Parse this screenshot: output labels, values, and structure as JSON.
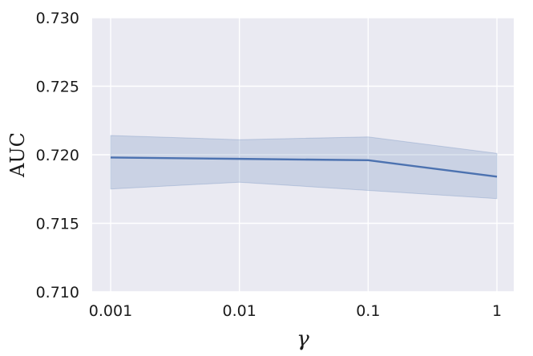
{
  "chart_data": {
    "type": "line",
    "xlabel": "γ",
    "ylabel": "AUC",
    "x": [
      0.001,
      0.01,
      0.1,
      1
    ],
    "x_tick_labels": [
      "0.001",
      "0.01",
      "0.1",
      "1"
    ],
    "x_scale": "log",
    "y_ticks": [
      0.71,
      0.715,
      0.72,
      0.725,
      0.73
    ],
    "y_tick_labels": [
      "0.710",
      "0.715",
      "0.720",
      "0.725",
      "0.730"
    ],
    "ylim": [
      0.71,
      0.73
    ],
    "grid": true,
    "series": [
      {
        "values": [
          0.7198,
          0.7197,
          0.7196,
          0.7184
        ],
        "lower": [
          0.7175,
          0.718,
          0.7174,
          0.7168
        ],
        "upper": [
          0.7214,
          0.7211,
          0.7213,
          0.7201
        ],
        "color": "#4c72b0"
      }
    ]
  },
  "colors": {
    "plot_background": "#eaeaf2",
    "grid": "#ffffff",
    "line": "#4c72b0",
    "band": "#4c72b0"
  }
}
